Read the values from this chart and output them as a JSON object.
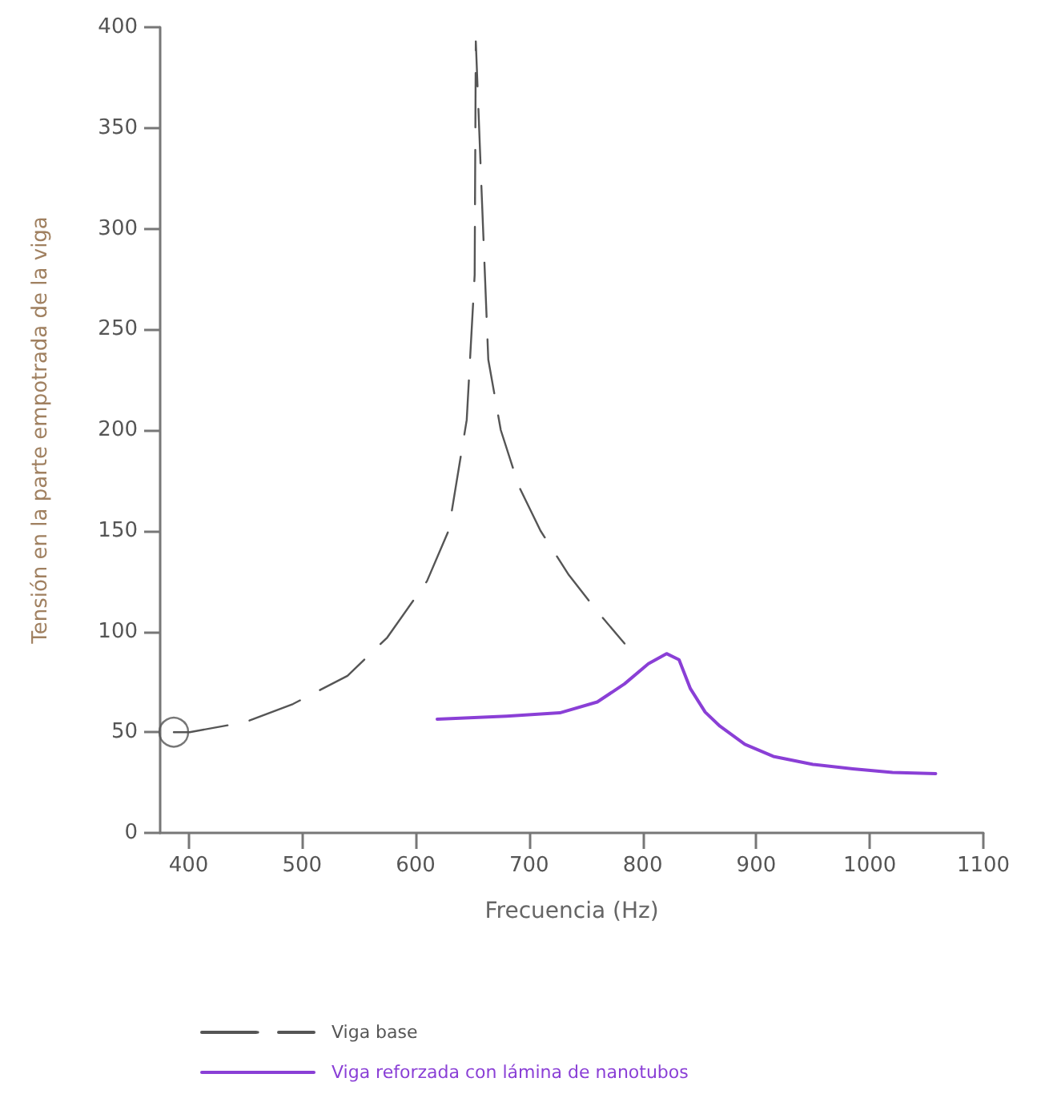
{
  "chart_data": {
    "type": "line",
    "xlabel": "Frecuencia (Hz)",
    "ylabel": "Tensión en la parte empotrada de la viga",
    "xlim": [
      375,
      1100
    ],
    "xticks": [
      400,
      500,
      600,
      700,
      800,
      900,
      1000,
      1100
    ],
    "ylim": [
      0,
      400
    ],
    "yticks": [
      0,
      50,
      100,
      150,
      200,
      250,
      300,
      350,
      400
    ],
    "grid": false,
    "legend": "bottom left",
    "marker": "none",
    "series": [
      {
        "name": "Viga base",
        "color": "#555555",
        "line_style": "dashed",
        "x": [
          387,
          401,
          450,
          492,
          540,
          575,
          610,
          629,
          645,
          652,
          653,
          658,
          664,
          675,
          691,
          710,
          735,
          760,
          784
        ],
        "values": [
          50,
          50,
          55,
          64,
          78,
          97,
          125,
          150,
          205,
          277,
          393,
          320,
          235,
          200,
          172,
          150,
          128,
          110,
          94
        ]
      },
      {
        "name": "Viga reforzada con lámina de nanotubos",
        "color": "#8a3fd6",
        "line_style": "solid",
        "x": [
          619,
          680,
          727,
          760,
          784,
          805,
          821,
          832,
          842,
          855,
          868,
          890,
          915,
          950,
          985,
          1020,
          1058
        ],
        "values": [
          56.5,
          58,
          59.6,
          65,
          74,
          84,
          89,
          86,
          71.6,
          60,
          53,
          44,
          38,
          34,
          31.8,
          30,
          29.4
        ]
      },
      {
        "type": "scatter",
        "marker": "circle",
        "color": "#555555",
        "x": [
          387
        ],
        "values": [
          50
        ]
      }
    ]
  }
}
